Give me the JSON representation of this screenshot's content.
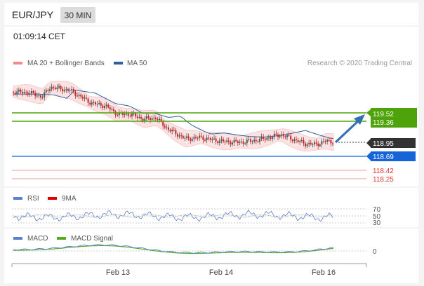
{
  "header": {
    "symbol": "EUR/JPY",
    "timeframe": "30 MIN"
  },
  "timestamp": "01:09:14 CET",
  "legend": {
    "bands_label": "MA 20 + Bollinger Bands",
    "ma50_label": "MA 50",
    "copyright": "Research © 2020 Trading Central"
  },
  "colors": {
    "bands": "#f28b8b",
    "ma50": "#2f5f9e",
    "resistance": "#4fa30a",
    "support": "#e53935",
    "pivot": "#1565d8",
    "last_price": "#333333",
    "arrow": "#2f6fb5",
    "rsi": "#5b7fce",
    "rsi_ma": "#e00000",
    "macd": "#5b7fce",
    "macd_signal": "#55aa22"
  },
  "price_labels": {
    "r2": "119.52",
    "r1": "119.36",
    "last": "118.95",
    "pivot": "118.69",
    "s1": "118.42",
    "s2": "118.25"
  },
  "rsi": {
    "label": "RSI",
    "ma_label": "9MA",
    "levels": [
      "70",
      "50",
      "30"
    ]
  },
  "macd": {
    "label": "MACD",
    "signal_label": "MACD Signal",
    "zero": "0"
  },
  "xaxis": {
    "ticks": [
      "Feb 13",
      "Feb 14",
      "Feb 16"
    ]
  }
}
